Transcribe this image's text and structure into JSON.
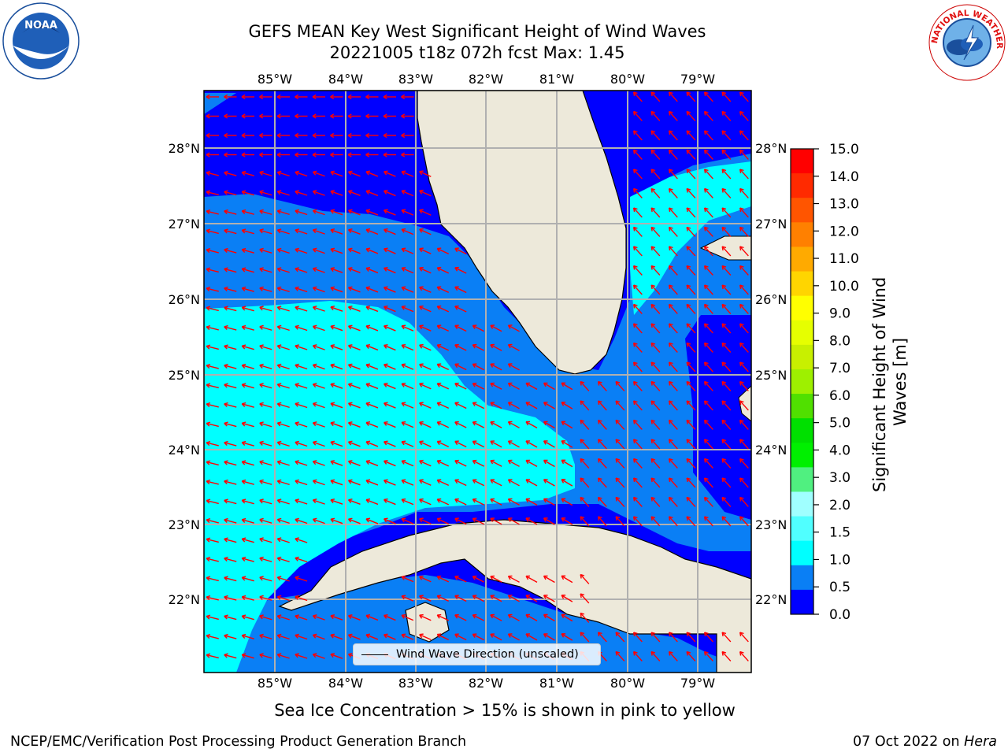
{
  "header": {
    "title_line1": "GEFS MEAN Key West Significant Height of Wind Waves",
    "title_line2": "20221005 t18z 072h fcst   Max: 1.45"
  },
  "logos": {
    "noaa": {
      "text": "NOAA",
      "ring_text": "NATIONAL OCEANIC AND ATMOSPHERIC ADMINISTRATION · U.S. DEPARTMENT OF COMMERCE"
    },
    "nws": {
      "ring_text": "NATIONAL WEATHER SERVICE"
    }
  },
  "map": {
    "lon_labels": [
      "85°W",
      "84°W",
      "83°W",
      "82°W",
      "81°W",
      "80°W",
      "79°W"
    ],
    "lat_labels": [
      "28°N",
      "27°N",
      "26°N",
      "25°N",
      "24°N",
      "23°N",
      "22°N"
    ],
    "colors": {
      "land": "#ede9da",
      "c0": "#0000ff",
      "c1": "#0a7ff5",
      "c2": "#00ffff",
      "arrow": "#ff0000",
      "grid": "#b0b0b0"
    }
  },
  "colorbar": {
    "label": "Significant Height of Wind Waves [m]",
    "label_line1": "Significant Height of Wind",
    "label_line2": "Waves [m]",
    "ticks": [
      "15.0",
      "14.0",
      "13.0",
      "12.0",
      "11.0",
      "10.0",
      "9.0",
      "8.0",
      "7.0",
      "6.0",
      "5.0",
      "4.0",
      "3.0",
      "2.0",
      "1.5",
      "1.0",
      "0.5",
      "0.0"
    ],
    "colors": [
      "#ff0000",
      "#ff2a00",
      "#ff5500",
      "#ff8000",
      "#ffaa00",
      "#ffd500",
      "#ffff00",
      "#e6ff00",
      "#c8f000",
      "#9ef000",
      "#50e000",
      "#00e000",
      "#00f000",
      "#50f080",
      "#a0ffff",
      "#50ffff",
      "#00ffff",
      "#0a7ff5",
      "#0000ff"
    ]
  },
  "legend": {
    "label": "Wind Wave Direction (unscaled)"
  },
  "sea_ice_note": "Sea Ice Concentration > 15% is shown in pink to yellow",
  "footer": {
    "left": "NCEP/EMC/Verification Post Processing Product Generation Branch",
    "right_date": "07 Oct 2022 on ",
    "right_host": "Hera"
  }
}
